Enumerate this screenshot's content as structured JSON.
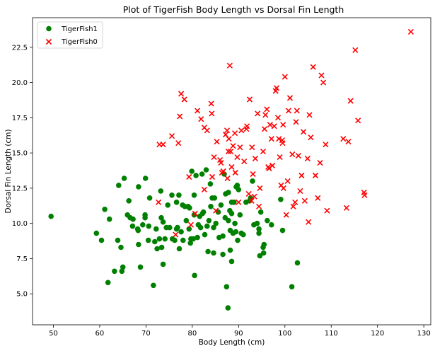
{
  "chart_data": {
    "type": "scatter",
    "title": "Plot of TigerFish Body Length vs Dorsal Fin Length",
    "xlabel": "Body Length (cm)",
    "ylabel": "Dorsal Fin Length (cm)",
    "xlim": [
      45.5,
      131.5
    ],
    "ylim": [
      2.8,
      24.6
    ],
    "xticks": [
      50,
      60,
      70,
      80,
      90,
      100,
      110,
      120,
      130
    ],
    "xtick_labels": [
      "50",
      "60",
      "70",
      "80",
      "90",
      "100",
      "110",
      "120",
      "130"
    ],
    "yticks": [
      5.0,
      7.5,
      10.0,
      12.5,
      15.0,
      17.5,
      20.0,
      22.5
    ],
    "ytick_labels": [
      "5.0",
      "7.5",
      "10.0",
      "12.5",
      "15.0",
      "17.5",
      "20.0",
      "22.5"
    ],
    "grid": false,
    "legend_position": "top-left",
    "series": [
      {
        "name": "TigerFish1",
        "marker": "circle",
        "color": "#008000",
        "points": [
          [
            49.5,
            10.5
          ],
          [
            59.3,
            9.3
          ],
          [
            60.4,
            8.8
          ],
          [
            61.1,
            11.0
          ],
          [
            61.8,
            5.8
          ],
          [
            62.1,
            10.3
          ],
          [
            63.2,
            6.6
          ],
          [
            63.9,
            8.8
          ],
          [
            64.1,
            12.7
          ],
          [
            64.6,
            8.3
          ],
          [
            64.8,
            6.6
          ],
          [
            65.0,
            6.9
          ],
          [
            65.3,
            13.2
          ],
          [
            66.0,
            10.6
          ],
          [
            66.3,
            11.6
          ],
          [
            66.6,
            10.4
          ],
          [
            67.2,
            10.3
          ],
          [
            67.1,
            9.8
          ],
          [
            68.2,
            9.6
          ],
          [
            68.3,
            9.5
          ],
          [
            68.4,
            8.5
          ],
          [
            68.4,
            12.6
          ],
          [
            68.8,
            6.9
          ],
          [
            69.3,
            9.9
          ],
          [
            69.8,
            10.4
          ],
          [
            69.8,
            10.6
          ],
          [
            69.9,
            13.2
          ],
          [
            70.5,
            8.8
          ],
          [
            70.6,
            9.8
          ],
          [
            70.8,
            11.8
          ],
          [
            71.6,
            5.6
          ],
          [
            71.9,
            8.7
          ],
          [
            72.2,
            9.6
          ],
          [
            72.4,
            8.2
          ],
          [
            72.9,
            8.9
          ],
          [
            73.2,
            12.3
          ],
          [
            73.3,
            10.4
          ],
          [
            73.4,
            8.3
          ],
          [
            73.7,
            10.1
          ],
          [
            73.7,
            7.1
          ],
          [
            74.1,
            8.9
          ],
          [
            74.4,
            9.7
          ],
          [
            74.7,
            11.3
          ],
          [
            75.1,
            9.7
          ],
          [
            75.6,
            12.0
          ],
          [
            75.7,
            8.9
          ],
          [
            76.2,
            8.8
          ],
          [
            76.6,
            11.5
          ],
          [
            76.6,
            9.6
          ],
          [
            76.8,
            9.7
          ],
          [
            77.1,
            12.0
          ],
          [
            77.2,
            8.2
          ],
          [
            77.6,
            9.4
          ],
          [
            77.9,
            11.3
          ],
          [
            78.0,
            8.8
          ],
          [
            78.4,
            11.2
          ],
          [
            78.7,
            10.2
          ],
          [
            79.1,
            11.2
          ],
          [
            79.3,
            9.6
          ],
          [
            79.4,
            11.1
          ],
          [
            79.6,
            8.6
          ],
          [
            79.7,
            8.9
          ],
          [
            79.9,
            13.7
          ],
          [
            80.2,
            8.9
          ],
          [
            80.4,
            10.6
          ],
          [
            80.4,
            12.0
          ],
          [
            80.5,
            6.3
          ],
          [
            80.8,
            13.4
          ],
          [
            81.1,
            9.0
          ],
          [
            81.3,
            9.9
          ],
          [
            81.6,
            10.5
          ],
          [
            81.8,
            9.7
          ],
          [
            82.1,
            13.5
          ],
          [
            82.2,
            10.7
          ],
          [
            82.4,
            10.8
          ],
          [
            82.7,
            9.2
          ],
          [
            83.0,
            13.8
          ],
          [
            83.2,
            9.8
          ],
          [
            83.4,
            8.0
          ],
          [
            83.6,
            10.2
          ],
          [
            83.9,
            12.8
          ],
          [
            84.0,
            11.2
          ],
          [
            84.3,
            11.8
          ],
          [
            84.6,
            9.7
          ],
          [
            84.6,
            7.9
          ],
          [
            84.8,
            11.8
          ],
          [
            85.1,
            10.0
          ],
          [
            85.6,
            10.8
          ],
          [
            85.8,
            9.0
          ],
          [
            86.2,
            11.3
          ],
          [
            86.6,
            9.1
          ],
          [
            86.6,
            7.8
          ],
          [
            86.9,
            13.5
          ],
          [
            87.1,
            10.4
          ],
          [
            87.2,
            12.1
          ],
          [
            87.4,
            5.5
          ],
          [
            87.7,
            4.0
          ],
          [
            87.8,
            12.2
          ],
          [
            87.8,
            10.2
          ],
          [
            88.1,
            10.9
          ],
          [
            88.2,
            9.5
          ],
          [
            88.2,
            8.1
          ],
          [
            88.5,
            11.5
          ],
          [
            88.5,
            10.7
          ],
          [
            88.5,
            7.3
          ],
          [
            88.8,
            9.3
          ],
          [
            89.0,
            11.5
          ],
          [
            89.2,
            10.0
          ],
          [
            89.4,
            9.4
          ],
          [
            89.5,
            12.6
          ],
          [
            89.7,
            12.7
          ],
          [
            89.8,
            8.8
          ],
          [
            90.0,
            12.4
          ],
          [
            90.3,
            10.6
          ],
          [
            90.6,
            9.3
          ],
          [
            91.0,
            9.2
          ],
          [
            91.6,
            11.5
          ],
          [
            92.4,
            11.6
          ],
          [
            92.6,
            11.8
          ],
          [
            93.0,
            13.0
          ],
          [
            93.3,
            9.9
          ],
          [
            94.0,
            10.0
          ],
          [
            94.4,
            9.6
          ],
          [
            94.4,
            9.3
          ],
          [
            94.6,
            7.7
          ],
          [
            94.8,
            10.8
          ],
          [
            95.3,
            8.3
          ],
          [
            95.4,
            7.9
          ],
          [
            95.5,
            8.5
          ],
          [
            96.2,
            10.2
          ],
          [
            97.1,
            9.9
          ],
          [
            99.1,
            11.7
          ],
          [
            99.5,
            9.5
          ],
          [
            101.5,
            5.5
          ],
          [
            102.7,
            7.2
          ]
        ]
      },
      {
        "name": "TigerFish0",
        "marker": "x",
        "color": "#ff0000",
        "points": [
          [
            72.7,
            11.5
          ],
          [
            72.9,
            15.6
          ],
          [
            73.7,
            15.6
          ],
          [
            75.6,
            16.2
          ],
          [
            76.4,
            9.2
          ],
          [
            77.0,
            15.7
          ],
          [
            77.3,
            17.6
          ],
          [
            77.6,
            19.2
          ],
          [
            78.3,
            18.8
          ],
          [
            79.3,
            13.3
          ],
          [
            79.7,
            9.9
          ],
          [
            80.6,
            10.7
          ],
          [
            81.1,
            18.0
          ],
          [
            81.9,
            17.4
          ],
          [
            82.6,
            16.8
          ],
          [
            82.6,
            12.4
          ],
          [
            83.2,
            16.6
          ],
          [
            84.1,
            18.5
          ],
          [
            84.2,
            17.8
          ],
          [
            84.3,
            13.3
          ],
          [
            84.7,
            14.7
          ],
          [
            85.1,
            10.9
          ],
          [
            85.3,
            15.8
          ],
          [
            86.0,
            14.5
          ],
          [
            86.2,
            14.3
          ],
          [
            86.4,
            13.6
          ],
          [
            86.7,
            13.7
          ],
          [
            87.2,
            16.3
          ],
          [
            87.5,
            16.6
          ],
          [
            87.6,
            13.2
          ],
          [
            87.8,
            15.1
          ],
          [
            87.9,
            16.0
          ],
          [
            88.1,
            21.2
          ],
          [
            88.3,
            15.1
          ],
          [
            88.5,
            14.0
          ],
          [
            88.8,
            15.5
          ],
          [
            89.2,
            16.4
          ],
          [
            89.3,
            13.6
          ],
          [
            89.7,
            14.7
          ],
          [
            90.0,
            11.5
          ],
          [
            90.3,
            15.4
          ],
          [
            90.6,
            16.6
          ],
          [
            91.2,
            14.4
          ],
          [
            91.7,
            16.7
          ],
          [
            91.8,
            16.9
          ],
          [
            92.2,
            12.1
          ],
          [
            92.4,
            18.8
          ],
          [
            92.8,
            11.6
          ],
          [
            92.8,
            11.6
          ],
          [
            92.9,
            15.4
          ],
          [
            93.1,
            13.5
          ],
          [
            93.4,
            11.9
          ],
          [
            93.6,
            14.6
          ],
          [
            94.1,
            17.8
          ],
          [
            94.4,
            11.2
          ],
          [
            94.6,
            12.5
          ],
          [
            95.3,
            15.1
          ],
          [
            95.6,
            16.7
          ],
          [
            95.8,
            17.7
          ],
          [
            96.1,
            18.1
          ],
          [
            96.4,
            14.0
          ],
          [
            96.6,
            13.9
          ],
          [
            96.8,
            17.0
          ],
          [
            97.1,
            16.0
          ],
          [
            97.3,
            14.1
          ],
          [
            97.7,
            16.9
          ],
          [
            98.0,
            19.4
          ],
          [
            98.2,
            19.6
          ],
          [
            98.5,
            17.5
          ],
          [
            98.7,
            16.0
          ],
          [
            98.9,
            14.7
          ],
          [
            99.2,
            12.7
          ],
          [
            99.4,
            15.9
          ],
          [
            99.5,
            15.7
          ],
          [
            99.6,
            17.0
          ],
          [
            99.7,
            12.5
          ],
          [
            100.0,
            20.4
          ],
          [
            100.3,
            10.6
          ],
          [
            100.6,
            13.0
          ],
          [
            100.8,
            18.0
          ],
          [
            101.1,
            18.9
          ],
          [
            101.6,
            14.9
          ],
          [
            101.8,
            11.2
          ],
          [
            102.2,
            11.5
          ],
          [
            102.4,
            17.2
          ],
          [
            102.6,
            18.0
          ],
          [
            102.9,
            14.8
          ],
          [
            103.3,
            12.3
          ],
          [
            103.6,
            13.4
          ],
          [
            104.0,
            16.5
          ],
          [
            104.3,
            11.6
          ],
          [
            104.9,
            14.6
          ],
          [
            105.1,
            10.1
          ],
          [
            105.3,
            17.7
          ],
          [
            105.6,
            16.1
          ],
          [
            106.1,
            21.1
          ],
          [
            106.6,
            13.4
          ],
          [
            107.1,
            11.8
          ],
          [
            107.6,
            14.3
          ],
          [
            107.9,
            20.5
          ],
          [
            108.3,
            20.0
          ],
          [
            108.8,
            15.6
          ],
          [
            109.1,
            10.9
          ],
          [
            112.6,
            16.0
          ],
          [
            113.3,
            11.1
          ],
          [
            113.7,
            15.8
          ],
          [
            114.2,
            18.7
          ],
          [
            115.2,
            22.3
          ],
          [
            115.8,
            17.3
          ],
          [
            117.1,
            12.2
          ],
          [
            117.2,
            12.0
          ],
          [
            127.2,
            23.6
          ]
        ]
      }
    ]
  }
}
